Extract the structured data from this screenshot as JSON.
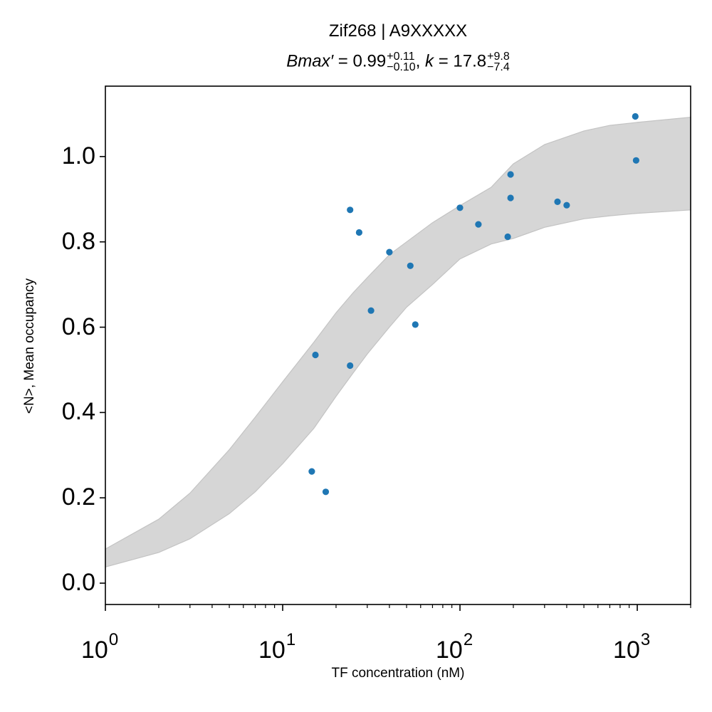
{
  "chart_data": {
    "type": "scatter",
    "title": "Zif268 | A9XXXXX",
    "subtitle": {
      "bmax_label": "Bmax′",
      "bmax_value": "0.99",
      "bmax_plus": "+0.11",
      "bmax_minus": "−0.10",
      "k_label": "k",
      "k_value": "17.8",
      "k_plus": "+9.8",
      "k_minus": "−7.4"
    },
    "xlabel": "TF concentration (nM)",
    "ylabel": "<N>, Mean occupancy",
    "xscale": "log",
    "xlim": [
      1,
      2000
    ],
    "ylim": [
      -0.05,
      1.165
    ],
    "grid": false,
    "x_ticks": [
      {
        "value": 1,
        "base": "10",
        "exp": "0"
      },
      {
        "value": 10,
        "base": "10",
        "exp": "1"
      },
      {
        "value": 100,
        "base": "10",
        "exp": "2"
      },
      {
        "value": 1000,
        "base": "10",
        "exp": "3"
      }
    ],
    "y_ticks": [
      {
        "value": 0.0,
        "label": "0.0"
      },
      {
        "value": 0.2,
        "label": "0.2"
      },
      {
        "value": 0.4,
        "label": "0.4"
      },
      {
        "value": 0.6,
        "label": "0.6"
      },
      {
        "value": 0.8,
        "label": "0.8"
      },
      {
        "value": 1.0,
        "label": "1.0"
      }
    ],
    "points": [
      {
        "x": 14.6,
        "y": 0.262
      },
      {
        "x": 15.3,
        "y": 0.535
      },
      {
        "x": 17.5,
        "y": 0.214
      },
      {
        "x": 24.0,
        "y": 0.875
      },
      {
        "x": 24.0,
        "y": 0.51
      },
      {
        "x": 27.0,
        "y": 0.822
      },
      {
        "x": 31.5,
        "y": 0.639
      },
      {
        "x": 40.0,
        "y": 0.776
      },
      {
        "x": 52.5,
        "y": 0.744
      },
      {
        "x": 56.0,
        "y": 0.606
      },
      {
        "x": 100,
        "y": 0.88
      },
      {
        "x": 127,
        "y": 0.841
      },
      {
        "x": 186,
        "y": 0.812
      },
      {
        "x": 193,
        "y": 0.958
      },
      {
        "x": 193,
        "y": 0.903
      },
      {
        "x": 355,
        "y": 0.894
      },
      {
        "x": 400,
        "y": 0.886
      },
      {
        "x": 975,
        "y": 1.094
      },
      {
        "x": 985,
        "y": 0.991
      }
    ],
    "band": {
      "x": [
        1,
        2,
        3,
        5,
        7,
        10,
        15,
        20,
        25,
        30,
        40,
        50,
        70,
        100,
        150,
        200,
        300,
        500,
        700,
        1000,
        2000
      ],
      "upper": [
        0.08,
        0.15,
        0.211,
        0.313,
        0.389,
        0.472,
        0.565,
        0.634,
        0.681,
        0.716,
        0.77,
        0.8,
        0.845,
        0.885,
        0.928,
        0.983,
        1.028,
        1.06,
        1.073,
        1.08,
        1.092
      ],
      "lower": [
        0.038,
        0.072,
        0.104,
        0.163,
        0.214,
        0.28,
        0.363,
        0.438,
        0.493,
        0.537,
        0.6,
        0.647,
        0.7,
        0.76,
        0.795,
        0.808,
        0.834,
        0.854,
        0.861,
        0.867,
        0.875
      ]
    },
    "colors": {
      "points": "#1f77b4",
      "band_fill": "#d6d6d6",
      "band_edge": "#c3c3c3",
      "axes": "#000000"
    }
  }
}
